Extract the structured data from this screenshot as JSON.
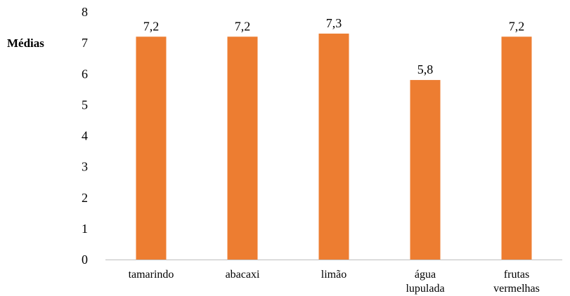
{
  "chart_data": {
    "type": "bar",
    "categories": [
      [
        "tamarindo"
      ],
      [
        "abacaxi"
      ],
      [
        "limão"
      ],
      [
        "água",
        "lupulada"
      ],
      [
        "frutas",
        "vermelhas"
      ]
    ],
    "values": [
      7.2,
      7.2,
      7.3,
      5.8,
      7.2
    ],
    "data_labels": [
      "7,2",
      "7,2",
      "7,3",
      "5,8",
      "7,2"
    ],
    "ylabel": "Médias",
    "xlabel": "",
    "ylim": [
      0,
      8
    ],
    "yticks": [
      0,
      1,
      2,
      3,
      4,
      5,
      6,
      7,
      8
    ],
    "bar_color": "#ED7D31",
    "axis_color": "#BFBFBF",
    "grid": false,
    "legend": "none"
  }
}
